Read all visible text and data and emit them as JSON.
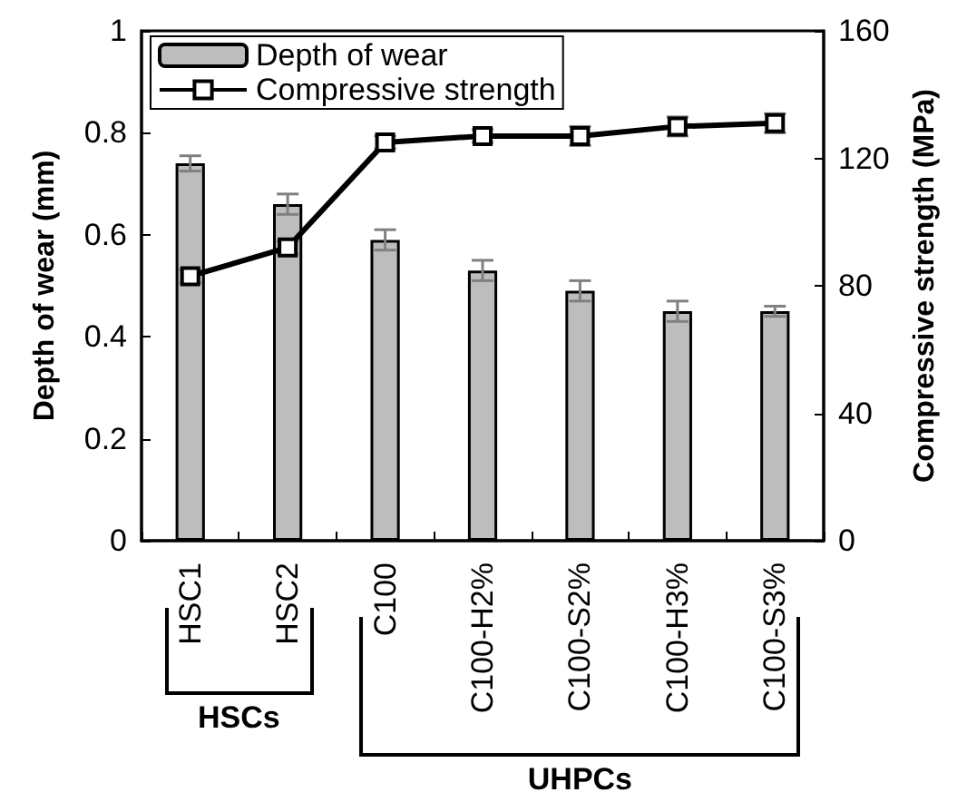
{
  "chart_data": {
    "type": "bar",
    "ylabel": "Depth of wear (mm)",
    "y2label": "Compressive strength (MPa)",
    "categories": [
      "HSC1",
      "HSC2",
      "C100",
      "C100-H2%",
      "C100-S2%",
      "C100-H3%",
      "C100-S3%"
    ],
    "series": [
      {
        "name": "Depth of wear",
        "color": "#bdbdbd",
        "values": [
          0.74,
          0.66,
          0.59,
          0.53,
          0.49,
          0.45,
          0.45
        ],
        "errors": [
          0.015,
          0.02,
          0.02,
          0.02,
          0.02,
          0.02,
          0.01
        ]
      },
      {
        "name": "Compressive strength",
        "type": "line",
        "axis": "y2",
        "color": "#000000",
        "marker": "square",
        "values": [
          83,
          92,
          125,
          127,
          127,
          130,
          131
        ],
        "errors": [
          2,
          2,
          2,
          2,
          3,
          3,
          3
        ]
      }
    ],
    "ylim": [
      0,
      1
    ],
    "yticks": [
      0,
      0.2,
      0.4,
      0.6,
      0.8,
      1
    ],
    "y2lim": [
      0,
      160
    ],
    "y2ticks": [
      0,
      40,
      80,
      120,
      160
    ],
    "legend": "top left",
    "grid": false,
    "annotations": [
      "HSCs",
      "UHPCs"
    ]
  }
}
